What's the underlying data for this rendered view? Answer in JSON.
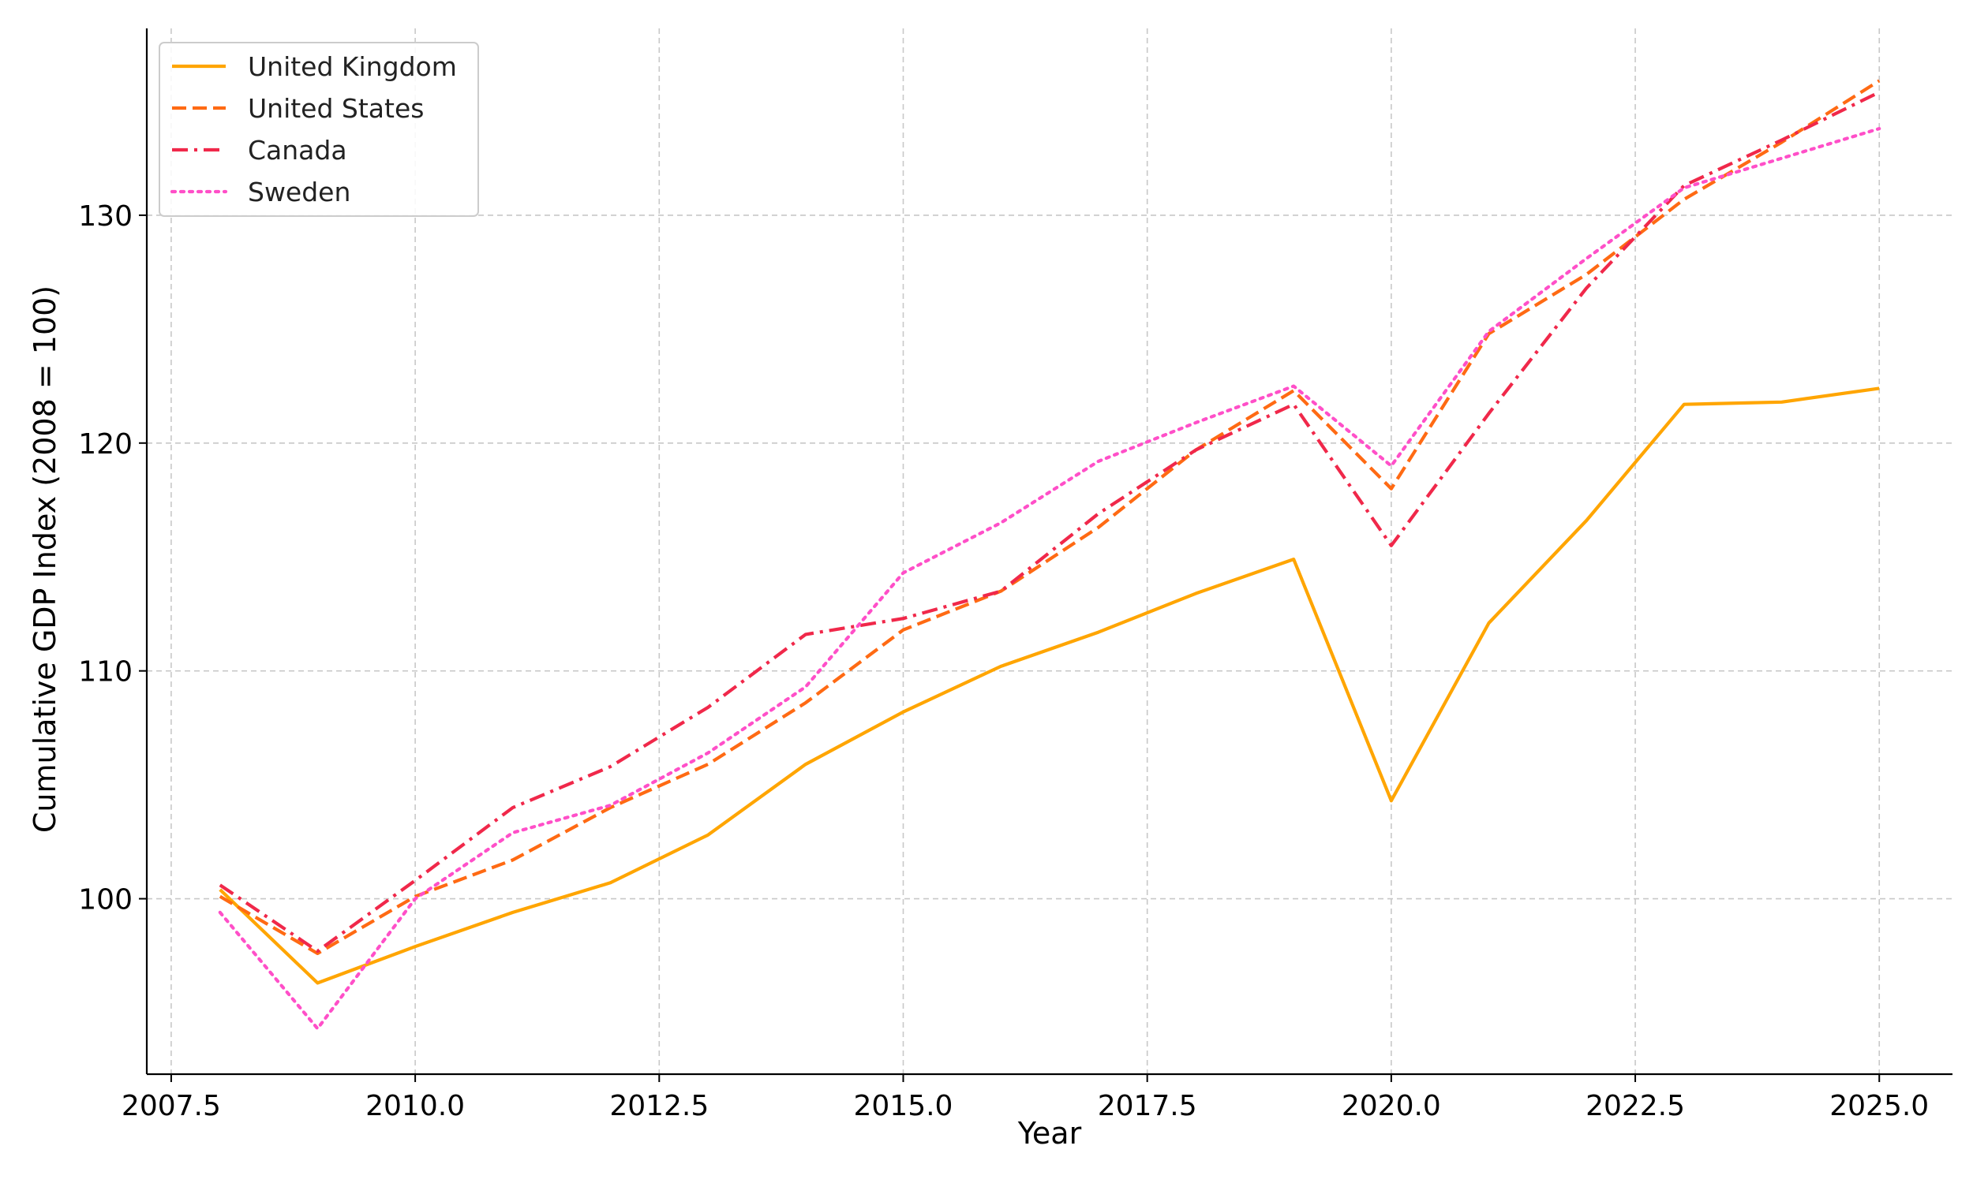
{
  "chart_data": {
    "type": "line",
    "title": "",
    "xlabel": "Year",
    "ylabel": "Cumulative GDP Index (2008 = 100)",
    "xlim": [
      2007.25,
      2025.75
    ],
    "ylim": [
      92.3,
      138.2
    ],
    "x_ticks": [
      2007.5,
      2010.0,
      2012.5,
      2015.0,
      2017.5,
      2020.0,
      2022.5,
      2025.0
    ],
    "x_tick_labels": [
      "2007.5",
      "2010.0",
      "2012.5",
      "2015.0",
      "2017.5",
      "2020.0",
      "2022.5",
      "2025.0"
    ],
    "y_ticks": [
      100,
      110,
      120,
      130
    ],
    "y_tick_labels": [
      "100",
      "110",
      "120",
      "130"
    ],
    "grid": true,
    "legend_position": "top-left",
    "x": [
      2008,
      2009,
      2010,
      2011,
      2012,
      2013,
      2014,
      2015,
      2016,
      2017,
      2018,
      2019,
      2020,
      2021,
      2022,
      2023,
      2024,
      2025
    ],
    "series": [
      {
        "name": "United Kingdom",
        "color": "#FFA500",
        "line_style": "solid",
        "values": [
          100.4,
          96.3,
          97.9,
          99.4,
          100.7,
          102.8,
          105.9,
          108.2,
          110.2,
          111.7,
          113.4,
          114.9,
          104.3,
          112.1,
          116.6,
          121.7,
          121.8,
          122.4
        ]
      },
      {
        "name": "United States",
        "color": "#FF6A13",
        "line_style": "dashed",
        "values": [
          100.1,
          97.6,
          100.1,
          101.7,
          104.0,
          105.9,
          108.6,
          111.8,
          113.5,
          116.3,
          119.7,
          122.3,
          118.0,
          124.8,
          127.4,
          130.7,
          133.2,
          135.9
        ]
      },
      {
        "name": "Canada",
        "color": "#F0284A",
        "line_style": "dashdot",
        "values": [
          100.6,
          97.7,
          100.8,
          104.0,
          105.8,
          108.4,
          111.6,
          112.3,
          113.5,
          116.9,
          119.7,
          121.7,
          115.5,
          121.3,
          126.8,
          131.3,
          133.3,
          135.4
        ]
      },
      {
        "name": "Sweden",
        "color": "#FF4FC8",
        "line_style": "dotted",
        "values": [
          99.4,
          94.3,
          100.0,
          102.9,
          104.1,
          106.4,
          109.3,
          114.3,
          116.5,
          119.2,
          120.9,
          122.5,
          119.0,
          124.9,
          128.1,
          131.2,
          132.5,
          133.8
        ]
      }
    ]
  }
}
